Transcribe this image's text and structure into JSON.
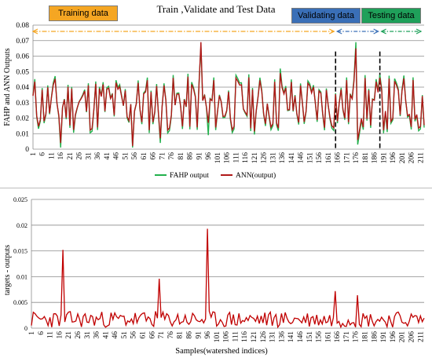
{
  "chart_data": [
    {
      "type": "line",
      "title": "Train ,Validate and Test Data",
      "ylabel": "FAHP  and ANN Outputs",
      "xlabel": "",
      "ylim": [
        0,
        0.08
      ],
      "yticks": [
        0,
        0.01,
        0.02,
        0.03,
        0.04,
        0.05,
        0.06,
        0.07,
        0.08
      ],
      "xlim": [
        1,
        213
      ],
      "xticks": [
        1,
        6,
        11,
        16,
        21,
        26,
        31,
        36,
        41,
        46,
        51,
        56,
        61,
        66,
        71,
        76,
        81,
        86,
        91,
        96,
        101,
        106,
        111,
        116,
        121,
        126,
        131,
        136,
        141,
        146,
        151,
        156,
        161,
        166,
        171,
        176,
        181,
        186,
        191,
        196,
        201,
        206,
        211
      ],
      "grid": "horizontal",
      "legend": "bottom",
      "sections": {
        "training": "Training data",
        "validating": "Validating data",
        "testing": "Testing data"
      },
      "section_colors": {
        "training": "#f5a623",
        "validating": "#3a6fb7",
        "testing": "#1fa05a"
      },
      "split_lines": [
        165,
        189
      ],
      "series": [
        {
          "name": "FAHP output",
          "color": "#22b14c"
        },
        {
          "name": "ANN(output)",
          "color": "#b01818"
        }
      ],
      "notable_points": [
        {
          "x": 16,
          "ann": 0.004,
          "fahp": 0.001
        },
        {
          "x": 55,
          "ann": 0.002,
          "fahp": 0.001
        },
        {
          "x": 70,
          "ann": 0.007,
          "fahp": 0.004
        },
        {
          "x": 92,
          "ann": 0.069,
          "fahp": 0.066
        },
        {
          "x": 96,
          "ann": 0.017,
          "fahp": 0.009
        },
        {
          "x": 135,
          "ann": 0.049,
          "fahp": 0.052
        },
        {
          "x": 176,
          "ann": 0.065,
          "fahp": 0.069
        },
        {
          "x": 177,
          "ann": 0.006,
          "fahp": 0.003
        }
      ]
    },
    {
      "type": "line",
      "title": "",
      "ylabel": "targets - outputs",
      "xlabel": "Samples(watershed indices)",
      "ylim": [
        0,
        0.025
      ],
      "yticks": [
        0,
        0.005,
        0.01,
        0.015,
        0.02,
        0.025
      ],
      "xlim": [
        1,
        213
      ],
      "xticks": [
        1,
        6,
        11,
        16,
        21,
        26,
        31,
        36,
        41,
        46,
        51,
        56,
        61,
        66,
        71,
        76,
        81,
        86,
        91,
        96,
        101,
        106,
        111,
        116,
        121,
        126,
        131,
        136,
        141,
        146,
        151,
        156,
        161,
        166,
        171,
        176,
        181,
        186,
        191,
        196,
        201,
        206,
        211
      ],
      "grid": "horizontal",
      "series": [
        {
          "name": "",
          "color": "#c00000"
        }
      ],
      "notable_points": [
        {
          "x": 18,
          "y": 0.0152
        },
        {
          "x": 70,
          "y": 0.0096
        },
        {
          "x": 96,
          "y": 0.0193
        },
        {
          "x": 165,
          "y": 0.0072
        },
        {
          "x": 177,
          "y": 0.0064
        }
      ]
    }
  ]
}
